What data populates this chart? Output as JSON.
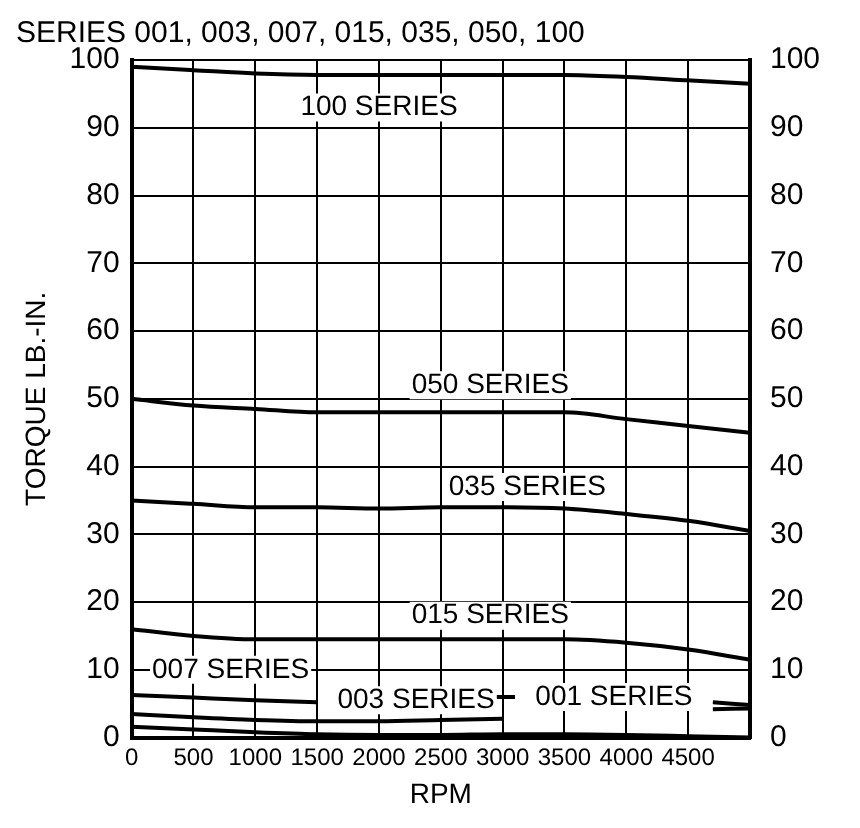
{
  "chart_data": {
    "type": "line",
    "title": "SERIES 001, 003, 007, 015, 035, 050, 100",
    "xlabel": "RPM",
    "ylabel": "TORQUE LB.-IN.",
    "x": [
      0,
      500,
      1000,
      1500,
      2000,
      2500,
      3000,
      3500,
      4000,
      4500,
      5000
    ],
    "series": [
      {
        "name": "100 SERIES",
        "color": "#000000",
        "values": [
          99,
          98.5,
          98,
          97.8,
          97.8,
          97.8,
          97.8,
          97.8,
          97.5,
          97,
          96.5
        ]
      },
      {
        "name": "050 SERIES",
        "color": "#000000",
        "values": [
          50,
          49,
          48.5,
          48,
          48,
          48,
          48,
          48,
          47,
          46,
          45
        ]
      },
      {
        "name": "035 SERIES",
        "color": "#000000",
        "values": [
          35,
          34.5,
          34,
          34,
          33.8,
          34,
          34,
          33.8,
          33,
          32,
          30.5
        ]
      },
      {
        "name": "015 SERIES",
        "color": "#000000",
        "values": [
          16,
          15,
          14.5,
          14.5,
          14.5,
          14.5,
          14.5,
          14.5,
          14,
          13,
          11.5
        ]
      },
      {
        "name": "007 SERIES",
        "color": "#000000",
        "x": [
          0,
          500,
          1000,
          1500,
          2000,
          2500,
          2950,
          3100,
          3500,
          4000,
          4500,
          4700,
          5000
        ],
        "values": [
          6.3,
          5.9,
          5.5,
          5.2,
          null,
          null,
          6,
          6,
          null,
          null,
          null,
          5.2,
          4.8
        ]
      },
      {
        "name": "003 SERIES",
        "color": "#000000",
        "x": [
          0,
          500,
          1000,
          1500,
          2000,
          2500,
          3000,
          3500,
          4000,
          4500,
          4700,
          5000
        ],
        "values": [
          3.5,
          3,
          2.6,
          2.4,
          2.4,
          2.6,
          2.8,
          null,
          null,
          null,
          4.2,
          4.3
        ]
      },
      {
        "name": "001 SERIES",
        "color": "#000000",
        "values": [
          1.6,
          1.2,
          0.8,
          0.5,
          0.4,
          0.4,
          0.5,
          0.5,
          0.4,
          0.2,
          0
        ]
      }
    ],
    "xlim": [
      0,
      5000
    ],
    "xticks": [
      0,
      500,
      1000,
      1500,
      2000,
      2500,
      3000,
      3500,
      4000,
      4500
    ],
    "ylim": [
      0,
      100
    ],
    "yticks": [
      0,
      10,
      20,
      30,
      40,
      50,
      60,
      70,
      80,
      90,
      100
    ],
    "y2lim": [
      0,
      100
    ],
    "y2ticks": [
      0,
      10,
      20,
      30,
      40,
      50,
      60,
      70,
      80,
      90,
      100
    ],
    "grid": true,
    "legend": false,
    "marker": "none",
    "line_style": "solid"
  }
}
